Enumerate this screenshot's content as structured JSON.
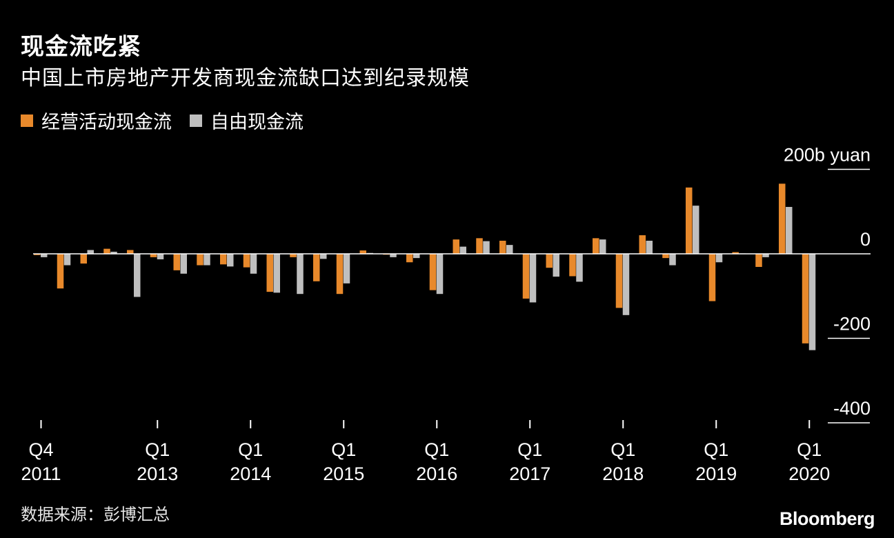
{
  "header": {
    "title": "现金流吃紧",
    "subtitle": "中国上市房地产开发商现金流缺口达到纪录规模"
  },
  "legend": {
    "items": [
      {
        "label": "经营活动现金流",
        "color": "#e8892b"
      },
      {
        "label": "自由现金流",
        "color": "#bfbfbf"
      }
    ]
  },
  "footer": {
    "source": "数据来源：彭博汇总",
    "logo": "Bloomberg"
  },
  "chart_data": {
    "type": "bar",
    "unit_label": "200b yuan",
    "ylim": [
      -400,
      200
    ],
    "yticks": [
      {
        "value": 200,
        "label": "200b yuan"
      },
      {
        "value": 0,
        "label": "0"
      },
      {
        "value": -200,
        "label": "-200"
      },
      {
        "value": -400,
        "label": "-400"
      }
    ],
    "x_labels": [
      {
        "index": 0,
        "line1": "Q4",
        "line2": "2011"
      },
      {
        "index": 5,
        "line1": "Q1",
        "line2": "2013"
      },
      {
        "index": 9,
        "line1": "Q1",
        "line2": "2014"
      },
      {
        "index": 13,
        "line1": "Q1",
        "line2": "2015"
      },
      {
        "index": 17,
        "line1": "Q1",
        "line2": "2016"
      },
      {
        "index": 21,
        "line1": "Q1",
        "line2": "2017"
      },
      {
        "index": 25,
        "line1": "Q1",
        "line2": "2018"
      },
      {
        "index": 29,
        "line1": "Q1",
        "line2": "2019"
      },
      {
        "index": 33,
        "line1": "Q1",
        "line2": "2020"
      }
    ],
    "categories": [
      "2011 Q4",
      "2012 Q1",
      "2012 Q2",
      "2012 Q3",
      "2012 Q4",
      "2013 Q1",
      "2013 Q2",
      "2013 Q3",
      "2013 Q4",
      "2014 Q1",
      "2014 Q2",
      "2014 Q3",
      "2014 Q4",
      "2015 Q1",
      "2015 Q2",
      "2015 Q3",
      "2015 Q4",
      "2016 Q1",
      "2016 Q2",
      "2016 Q3",
      "2016 Q4",
      "2017 Q1",
      "2017 Q2",
      "2017 Q3",
      "2017 Q4",
      "2018 Q1",
      "2018 Q2",
      "2018 Q3",
      "2018 Q4",
      "2019 Q1",
      "2019 Q2",
      "2019 Q3",
      "2019 Q4",
      "2020 Q1"
    ],
    "series": [
      {
        "name": "经营活动现金流",
        "color": "#e8892b",
        "values": [
          -3,
          -82,
          -23,
          12,
          9,
          -8,
          -39,
          -27,
          -25,
          -32,
          -90,
          -8,
          -65,
          -95,
          8,
          -2,
          -20,
          -86,
          34,
          37,
          31,
          -106,
          -33,
          -53,
          37,
          -128,
          44,
          -10,
          157,
          -112,
          4,
          -31,
          166,
          -212
        ]
      },
      {
        "name": "自由现金流",
        "color": "#bfbfbf",
        "values": [
          -8,
          -27,
          9,
          5,
          -102,
          -13,
          -47,
          -27,
          -30,
          -47,
          -92,
          -95,
          -12,
          -70,
          2,
          -8,
          -10,
          -95,
          17,
          30,
          21,
          -115,
          -54,
          -66,
          34,
          -145,
          31,
          -27,
          114,
          -20,
          1,
          -8,
          111,
          -228
        ]
      }
    ]
  }
}
